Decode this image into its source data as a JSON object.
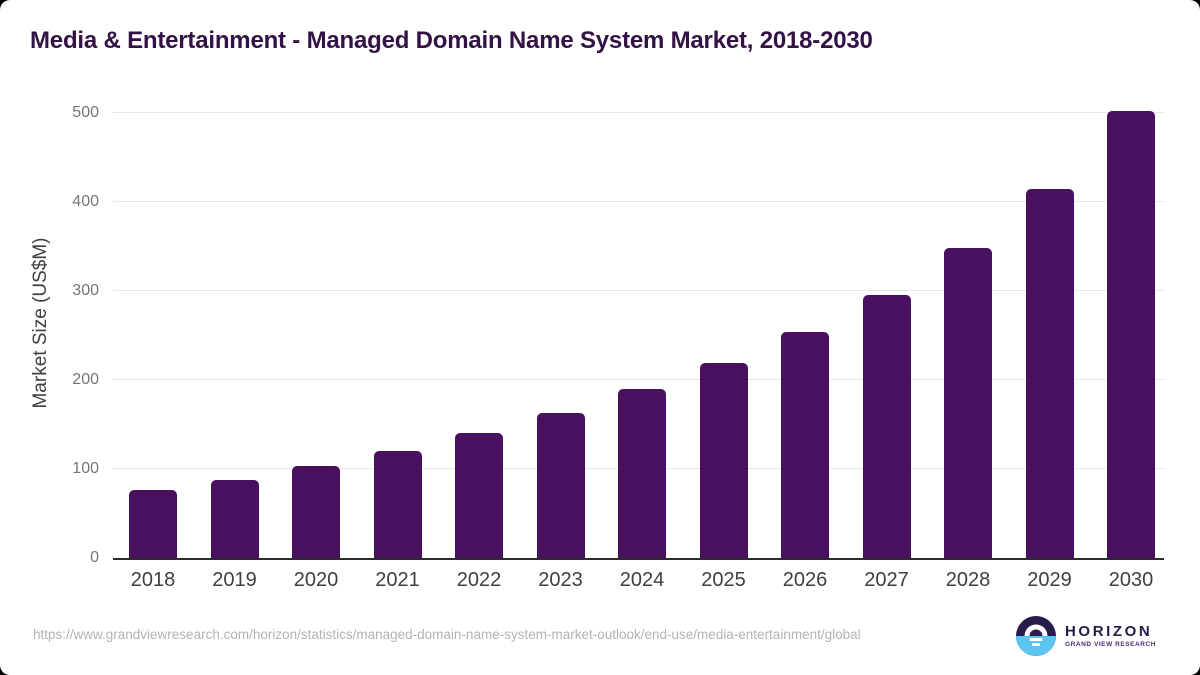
{
  "chart_data": {
    "type": "bar",
    "title": "Media & Entertainment - Managed Domain Name System Market, 2018-2030",
    "categories": [
      "2018",
      "2019",
      "2020",
      "2021",
      "2022",
      "2023",
      "2024",
      "2025",
      "2026",
      "2027",
      "2028",
      "2029",
      "2030"
    ],
    "values": [
      76,
      88,
      103,
      120,
      140,
      163,
      190,
      219,
      254,
      295,
      348,
      414,
      502
    ],
    "xlabel": "",
    "ylabel": "Market Size (US$M)",
    "ylim": [
      0,
      500
    ],
    "yticks": [
      0,
      100,
      200,
      300,
      400,
      500
    ],
    "grid": "horizontal-gridlines-on",
    "legend": "none",
    "bar_color": "#4A1060",
    "gridline_color": "#E7E7E7",
    "axis_line_color": "#2B2B2B",
    "title_color": "#331245",
    "ytick_color": "#757575",
    "xtick_color": "#3F3F3F",
    "ylabel_color": "#3F3F3F"
  },
  "footer": {
    "source_url": "https://www.grandviewresearch.com/horizon/statistics/managed-domain-name-system-market-outlook/end-use/media-entertainment/global",
    "url_color": "#B3B3B3",
    "logo": {
      "brand": "HORIZON",
      "tagline": "GRAND VIEW RESEARCH",
      "brand_color": "#2A1A4A",
      "tagline_color": "#4A2A7A",
      "icon_top_color": "#2B1B4B",
      "icon_bottom_color": "#5BC4F1"
    }
  }
}
